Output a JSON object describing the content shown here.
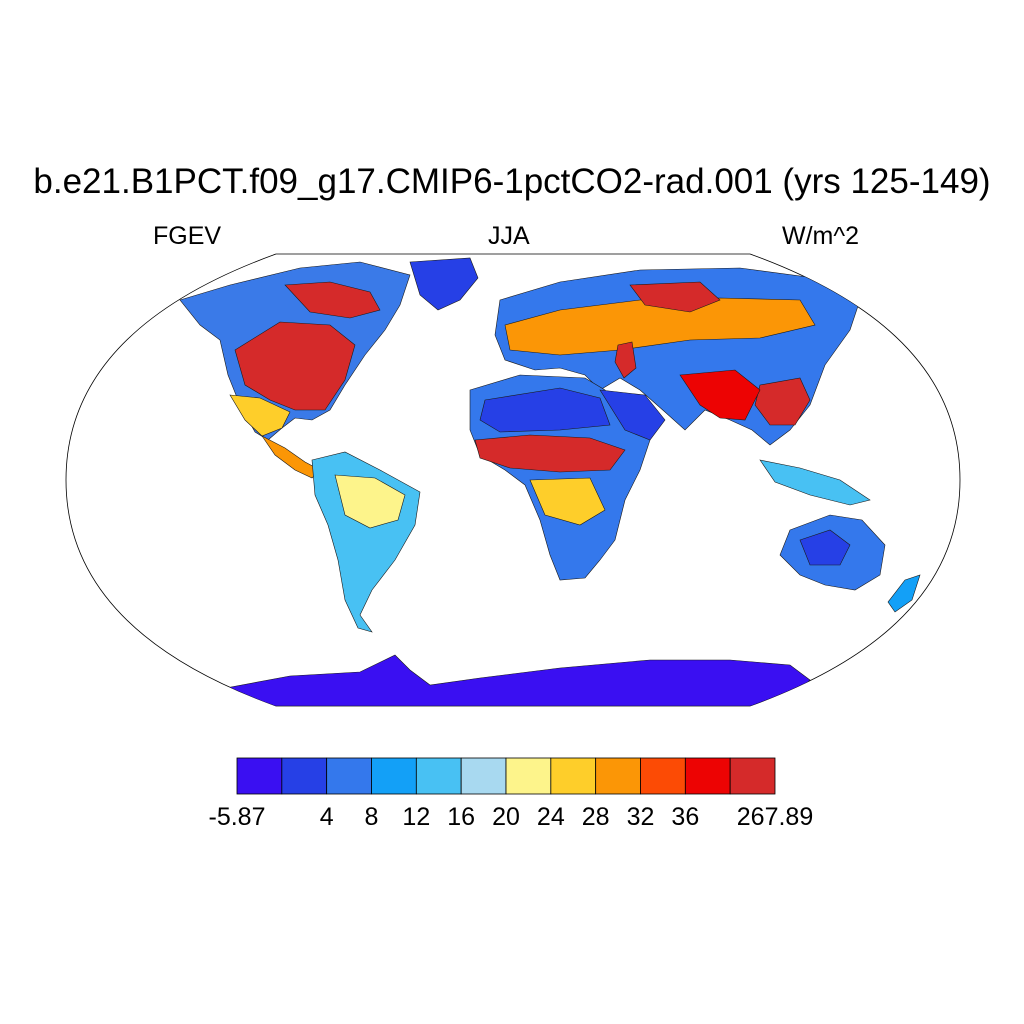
{
  "title": "b.e21.B1PCT.f09_g17.CMIP6-1pctCO2-rad.001 (yrs 125-149)",
  "left_string": "FGEV",
  "center_string": "JJA",
  "right_string": "W/m^2",
  "colorbar": {
    "colors": [
      "#3a0ff2",
      "#2640e6",
      "#3478ec",
      "#13a0f7",
      "#48c1f3",
      "#a8d9f0",
      "#fdf48b",
      "#fece2a",
      "#fb9606",
      "#fc4b05",
      "#ed0303",
      "#d52a2a"
    ],
    "labels": [
      "-5.87",
      "4",
      "8",
      "12",
      "16",
      "20",
      "24",
      "28",
      "32",
      "36",
      "267.89"
    ]
  },
  "map": {
    "projection": "Robinson",
    "field": "FGEV",
    "season": "JJA",
    "units": "W/m^2"
  }
}
